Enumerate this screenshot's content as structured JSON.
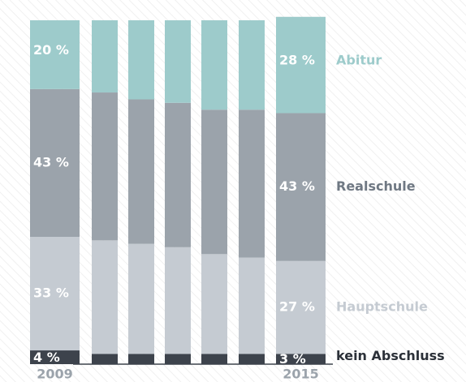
{
  "chart_data": {
    "type": "stacked_bar",
    "categories": [
      "2009",
      null,
      null,
      null,
      null,
      null,
      "2015"
    ],
    "ylim": [
      0,
      100
    ],
    "series": [
      {
        "name": "kein Abschluss",
        "color": "#3d434c",
        "label_color": "#2b3038",
        "values": [
          4,
          3,
          3,
          3,
          3,
          3,
          3
        ],
        "value_labels": [
          "4 %",
          null,
          null,
          null,
          null,
          null,
          "3 %"
        ]
      },
      {
        "name": "Hauptschule",
        "color": "#c5cbd2",
        "label_color": "#c5cbd2",
        "values": [
          33,
          33,
          32,
          31,
          29,
          28,
          27
        ],
        "value_labels": [
          "33 %",
          null,
          null,
          null,
          null,
          null,
          "27 %"
        ]
      },
      {
        "name": "Realschule",
        "color": "#9ba3ab",
        "label_color": "#6f7883",
        "values": [
          43,
          43,
          42,
          42,
          42,
          43,
          43
        ],
        "value_labels": [
          "43 %",
          null,
          null,
          null,
          null,
          null,
          "43 %"
        ]
      },
      {
        "name": "Abitur",
        "color": "#9dcbcb",
        "label_color": "#9dcbcb",
        "values": [
          20,
          21,
          23,
          24,
          26,
          26,
          28
        ],
        "value_labels": [
          "20 %",
          null,
          null,
          null,
          null,
          null,
          "28 %"
        ]
      }
    ]
  }
}
